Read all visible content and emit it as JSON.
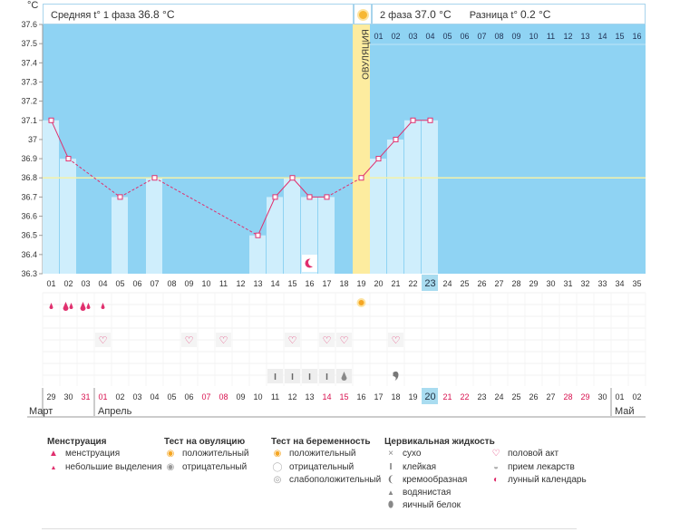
{
  "header": {
    "unit": "°C",
    "phase1_label": "Средняя t° 1 фаза",
    "phase1_value": "36.8 °C",
    "phase2_label": "2 фаза",
    "phase2_value": "37.0 °C",
    "diff_label": "Разница t°",
    "diff_value": "0.2 °C",
    "ovulation_label": "ОВУЛЯЦИЯ"
  },
  "colors": {
    "phase_bg": "#8fd3f3",
    "bar_fill": "#cfeefc",
    "ovulation": "#fdec9f",
    "line": "#e0306e",
    "coverline": "#f4f2a8",
    "highlight": "#a9dcf0",
    "holiday": "#d8114f"
  },
  "chart_data": {
    "type": "line",
    "title": "",
    "xlabel": "",
    "ylabel": "°C",
    "ylim": [
      36.3,
      37.6
    ],
    "yticks": [
      "36.3",
      "36.4",
      "36.5",
      "36.6",
      "36.7",
      "36.8",
      "36.9",
      "37",
      "37.1",
      "37.2",
      "37.3",
      "37.4",
      "37.5",
      "37.6"
    ],
    "coverline": 36.8,
    "ovulation_day": 19,
    "today_day": 23,
    "cycle_days": [
      "01",
      "02",
      "03",
      "04",
      "05",
      "06",
      "07",
      "08",
      "09",
      "10",
      "11",
      "12",
      "13",
      "14",
      "15",
      "16",
      "17",
      "18",
      "19",
      "20",
      "21",
      "22",
      "23",
      "24",
      "25",
      "26",
      "27",
      "28",
      "29",
      "30",
      "31",
      "32",
      "33",
      "34",
      "35"
    ],
    "phase2_days": [
      "01",
      "02",
      "03",
      "04",
      "05",
      "06",
      "07",
      "08",
      "09",
      "10",
      "11",
      "12",
      "13",
      "14",
      "15",
      "16"
    ],
    "temps": [
      {
        "day": 1,
        "temp": 37.1
      },
      {
        "day": 2,
        "temp": 36.9
      },
      {
        "day": 5,
        "temp": 36.7
      },
      {
        "day": 7,
        "temp": 36.8
      },
      {
        "day": 13,
        "temp": 36.5
      },
      {
        "day": 14,
        "temp": 36.7
      },
      {
        "day": 15,
        "temp": 36.8
      },
      {
        "day": 16,
        "temp": 36.7
      },
      {
        "day": 17,
        "temp": 36.7
      },
      {
        "day": 19,
        "temp": 36.8
      },
      {
        "day": 20,
        "temp": 36.9
      },
      {
        "day": 21,
        "temp": 37.0
      },
      {
        "day": 22,
        "temp": 37.1
      },
      {
        "day": 23,
        "temp": 37.1
      }
    ],
    "dates": [
      "29",
      "30",
      "31",
      "01",
      "02",
      "03",
      "04",
      "05",
      "06",
      "07",
      "08",
      "09",
      "10",
      "11",
      "12",
      "13",
      "14",
      "15",
      "16",
      "17",
      "18",
      "19",
      "20",
      "21",
      "22",
      "23",
      "24",
      "25",
      "26",
      "27",
      "28",
      "29",
      "30",
      "01",
      "02"
    ],
    "date_red": [
      2,
      3,
      9,
      10,
      16,
      17,
      23,
      24,
      30,
      31
    ],
    "months": [
      {
        "label": "Март",
        "start": 0
      },
      {
        "label": "Апрель",
        "start": 3
      },
      {
        "label": "Май",
        "start": 33
      }
    ],
    "menstruation": [
      {
        "day": 1,
        "type": "light"
      },
      {
        "day": 2,
        "type": "heavy"
      },
      {
        "day": 3,
        "type": "heavy"
      },
      {
        "day": 4,
        "type": "light"
      }
    ],
    "ovulation_test_positive": [
      19
    ],
    "intercourse": [
      4,
      9,
      11,
      15,
      17,
      18,
      21
    ],
    "cervical_sticky": [
      14,
      15,
      16,
      17
    ],
    "cervical_watery": [
      18
    ],
    "cervical_creamy": [
      21
    ],
    "lunar": [
      16
    ]
  },
  "legend": {
    "menstruation": {
      "title": "Менструация",
      "items": [
        "менструация",
        "небольшие выделения"
      ]
    },
    "ovulation_test": {
      "title": "Тест на овуляцию",
      "items": [
        "положительный",
        "отрицательный"
      ]
    },
    "pregnancy_test": {
      "title": "Тест на беременность",
      "items": [
        "положительный",
        "отрицательный",
        "слабоположительный"
      ]
    },
    "cervical": {
      "title": "Цервикальная жидкость",
      "items": [
        "сухо",
        "клейкая",
        "кремообразная",
        "водянистая",
        "яичный белок"
      ]
    },
    "other": {
      "items": [
        "половой акт",
        "прием лекарств",
        "лунный календарь"
      ]
    }
  }
}
